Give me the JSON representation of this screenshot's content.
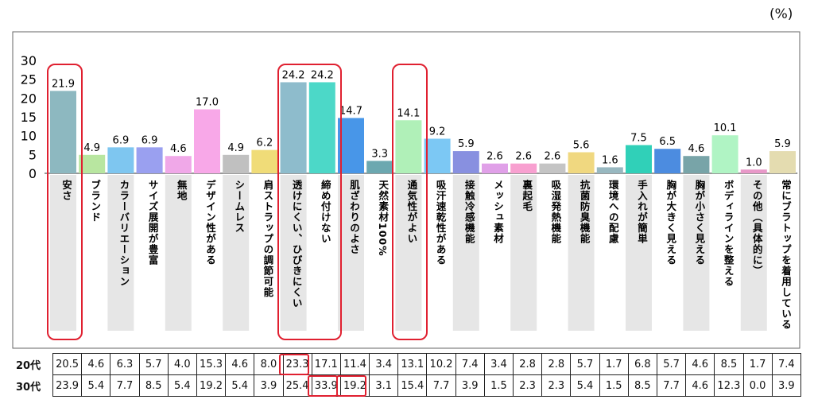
{
  "unit_label": "(%)",
  "chart_data": {
    "type": "bar",
    "ylim": [
      0,
      30
    ],
    "yticks": [
      0,
      5,
      10,
      15,
      20,
      25,
      30
    ],
    "grid": false,
    "categories": [
      "安さ",
      "ブランド",
      "カラーバリエーション",
      "サイズ展開が豊富",
      "無地",
      "デザイン性がある",
      "シームレス",
      "肩ストラップの調節可能",
      "透けにくい、ひびきにくい",
      "締め付けない",
      "肌ざわりのよさ",
      "天然素材100%",
      "通気性がよい",
      "吸汗速乾性がある",
      "接触冷感機能",
      "メッシュ素材",
      "裏起毛",
      "吸湿発熱機能",
      "抗菌防臭機能",
      "環境への配慮",
      "手入れが簡単",
      "胸が大きく見える",
      "胸が小さく見える",
      "ボディラインを整える",
      "その他（具体的に）",
      "常にブラトップを着用している"
    ],
    "values": [
      21.9,
      4.9,
      6.9,
      6.9,
      4.6,
      17.0,
      4.9,
      6.2,
      24.2,
      24.2,
      14.7,
      3.3,
      14.1,
      9.2,
      5.9,
      2.6,
      2.6,
      2.6,
      5.6,
      1.6,
      7.5,
      6.5,
      4.6,
      10.1,
      1.0,
      5.9
    ],
    "value_labels": [
      "21.9",
      "4.9",
      "6.9",
      "6.9",
      "4.6",
      "17.0",
      "4.9",
      "6.2",
      "24.2",
      "24.2",
      "14.7",
      "3.3",
      "14.1",
      "9.2",
      "5.9",
      "2.6",
      "2.6",
      "2.6",
      "5.6",
      "1.6",
      "7.5",
      "6.5",
      "4.6",
      "10.1",
      "1.0",
      "5.9"
    ],
    "colors": [
      "#8db8c0",
      "#b8e6a0",
      "#7ec6f0",
      "#9aa0f0",
      "#f0a8e8",
      "#f8a8e8",
      "#c0c0c0",
      "#f0dc78",
      "#8ebccc",
      "#4cd8c8",
      "#4896e8",
      "#6ca8b0",
      "#b0f0b8",
      "#7cc8f4",
      "#8890e0",
      "#e0a0e8",
      "#f8a0d0",
      "#c4c4c4",
      "#f0d880",
      "#98b8c0",
      "#30d0b8",
      "#4c8ce0",
      "#78a4a8",
      "#b0f4c4",
      "#e898c8",
      "#e4dcb0"
    ],
    "highlighted": [
      "安さ",
      "透けにくい、ひびきにくい",
      "締め付けない",
      "通気性がよい"
    ]
  },
  "breakdown": {
    "rows": [
      {
        "label": "20代",
        "values": [
          "20.5",
          "4.6",
          "6.3",
          "5.7",
          "4.0",
          "15.3",
          "4.6",
          "8.0",
          "23.3",
          "17.1",
          "11.4",
          "3.4",
          "13.1",
          "10.2",
          "7.4",
          "3.4",
          "2.8",
          "2.8",
          "5.7",
          "1.7",
          "6.8",
          "5.7",
          "4.6",
          "8.5",
          "1.7",
          "7.4"
        ]
      },
      {
        "label": "30代",
        "values": [
          "23.9",
          "5.4",
          "7.7",
          "8.5",
          "5.4",
          "19.2",
          "5.4",
          "3.9",
          "25.4",
          "33.9",
          "19.2",
          "3.1",
          "15.4",
          "7.7",
          "3.9",
          "1.5",
          "2.3",
          "2.3",
          "5.4",
          "1.5",
          "8.5",
          "7.7",
          "4.6",
          "12.3",
          "0.0",
          "3.9"
        ]
      }
    ],
    "highlighted_cells": [
      [
        0,
        8
      ],
      [
        1,
        9
      ],
      [
        1,
        10
      ]
    ]
  }
}
